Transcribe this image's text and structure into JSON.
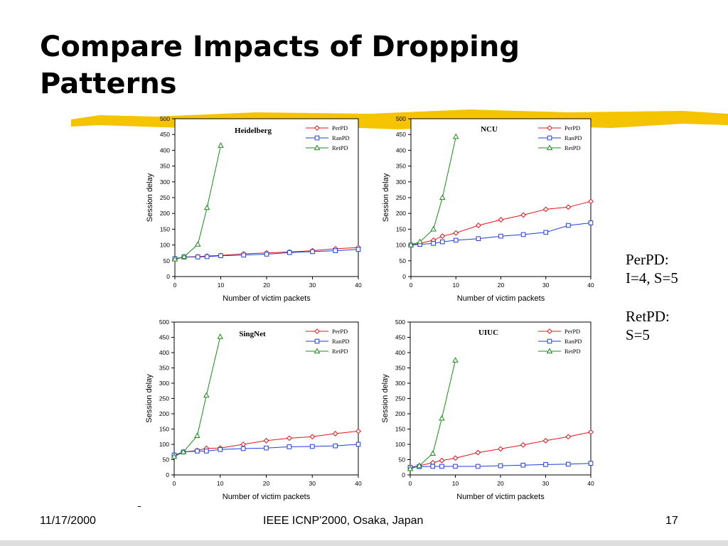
{
  "slide": {
    "title_line1": "Compare Impacts of Dropping",
    "title_line2": "Patterns"
  },
  "side_notes": {
    "perpd_label": "PerPD:",
    "perpd_params": "I=4, S=5",
    "retpd_label": "RetPD:",
    "retpd_params": "S=5"
  },
  "footer": {
    "date": "11/17/2000",
    "venue": "IEEE ICNP'2000, Osaka, Japan",
    "page": "17"
  },
  "colors": {
    "brush": "#f5c400",
    "PerPD": "#e8141c",
    "RanPD": "#1f3fd8",
    "RetPD": "#1c8a1c"
  },
  "chart_data": [
    {
      "type": "line",
      "title": "Heidelberg",
      "xlabel": "Number of victim packets",
      "ylabel": "Session delay",
      "xlim": [
        0,
        40
      ],
      "ylim": [
        0,
        500
      ],
      "xticks": [
        0,
        10,
        20,
        30,
        40
      ],
      "yticks": [
        0,
        50,
        100,
        150,
        200,
        250,
        300,
        350,
        400,
        450,
        500
      ],
      "legend_position": "top-right",
      "series": [
        {
          "name": "PerPD",
          "marker": "diamond",
          "x": [
            0,
            2,
            5,
            7,
            10,
            15,
            20,
            25,
            30,
            35,
            40
          ],
          "y": [
            55,
            62,
            63,
            65,
            67,
            72,
            75,
            78,
            82,
            88,
            92
          ]
        },
        {
          "name": "RanPD",
          "marker": "square",
          "x": [
            0,
            2,
            5,
            7,
            10,
            15,
            20,
            25,
            30,
            35,
            40
          ],
          "y": [
            57,
            62,
            62,
            63,
            66,
            68,
            71,
            76,
            79,
            82,
            86
          ]
        },
        {
          "name": "RetPD",
          "marker": "triangle",
          "x": [
            0,
            2,
            5,
            7,
            10
          ],
          "y": [
            55,
            63,
            102,
            218,
            415
          ]
        }
      ]
    },
    {
      "type": "line",
      "title": "NCU",
      "xlabel": "Number of victim packets",
      "ylabel": "Session delay",
      "xlim": [
        0,
        40
      ],
      "ylim": [
        0,
        500
      ],
      "xticks": [
        0,
        10,
        20,
        30,
        40
      ],
      "yticks": [
        0,
        50,
        100,
        150,
        200,
        250,
        300,
        350,
        400,
        450,
        500
      ],
      "legend_position": "top-right",
      "series": [
        {
          "name": "PerPD",
          "marker": "diamond",
          "x": [
            0,
            2,
            5,
            7,
            10,
            15,
            20,
            25,
            30,
            35,
            40
          ],
          "y": [
            100,
            105,
            115,
            128,
            138,
            162,
            180,
            195,
            213,
            220,
            238
          ]
        },
        {
          "name": "RanPD",
          "marker": "square",
          "x": [
            0,
            2,
            5,
            7,
            10,
            15,
            20,
            25,
            30,
            35,
            40
          ],
          "y": [
            100,
            102,
            105,
            110,
            115,
            120,
            128,
            133,
            140,
            162,
            170
          ]
        },
        {
          "name": "RetPD",
          "marker": "triangle",
          "x": [
            0,
            2,
            5,
            7,
            10
          ],
          "y": [
            100,
            110,
            150,
            250,
            443
          ]
        }
      ]
    },
    {
      "type": "line",
      "title": "SingNet",
      "xlabel": "Number of victim packets",
      "ylabel": "Session delay",
      "xlim": [
        0,
        40
      ],
      "ylim": [
        0,
        500
      ],
      "xticks": [
        0,
        10,
        20,
        30,
        40
      ],
      "yticks": [
        0,
        50,
        100,
        150,
        200,
        250,
        300,
        350,
        400,
        450,
        500
      ],
      "legend_position": "top-right",
      "series": [
        {
          "name": "PerPD",
          "marker": "diamond",
          "x": [
            0,
            2,
            5,
            7,
            10,
            15,
            20,
            25,
            30,
            35,
            40
          ],
          "y": [
            63,
            75,
            80,
            87,
            88,
            100,
            112,
            120,
            125,
            135,
            143
          ]
        },
        {
          "name": "RanPD",
          "marker": "square",
          "x": [
            0,
            2,
            5,
            7,
            10,
            15,
            20,
            25,
            30,
            35,
            40
          ],
          "y": [
            65,
            75,
            78,
            78,
            83,
            86,
            88,
            92,
            93,
            95,
            100
          ]
        },
        {
          "name": "RetPD",
          "marker": "triangle",
          "x": [
            0,
            2,
            5,
            7,
            10
          ],
          "y": [
            60,
            75,
            128,
            260,
            452
          ]
        }
      ]
    },
    {
      "type": "line",
      "title": "UIUC",
      "xlabel": "Number of victim packets",
      "ylabel": "Session delay",
      "xlim": [
        0,
        40
      ],
      "ylim": [
        0,
        500
      ],
      "xticks": [
        0,
        10,
        20,
        30,
        40
      ],
      "yticks": [
        0,
        50,
        100,
        150,
        200,
        250,
        300,
        350,
        400,
        450,
        500
      ],
      "legend_position": "top-right",
      "series": [
        {
          "name": "PerPD",
          "marker": "diamond",
          "x": [
            0,
            2,
            5,
            7,
            10,
            15,
            20,
            25,
            30,
            35,
            40
          ],
          "y": [
            25,
            30,
            40,
            47,
            55,
            73,
            85,
            98,
            112,
            125,
            140
          ]
        },
        {
          "name": "RanPD",
          "marker": "square",
          "x": [
            0,
            2,
            5,
            7,
            10,
            15,
            20,
            25,
            30,
            35,
            40
          ],
          "y": [
            25,
            27,
            28,
            28,
            28,
            28,
            30,
            32,
            34,
            35,
            38
          ]
        },
        {
          "name": "RetPD",
          "marker": "triangle",
          "x": [
            0,
            2,
            5,
            7,
            10
          ],
          "y": [
            20,
            30,
            70,
            185,
            375
          ]
        }
      ]
    }
  ]
}
